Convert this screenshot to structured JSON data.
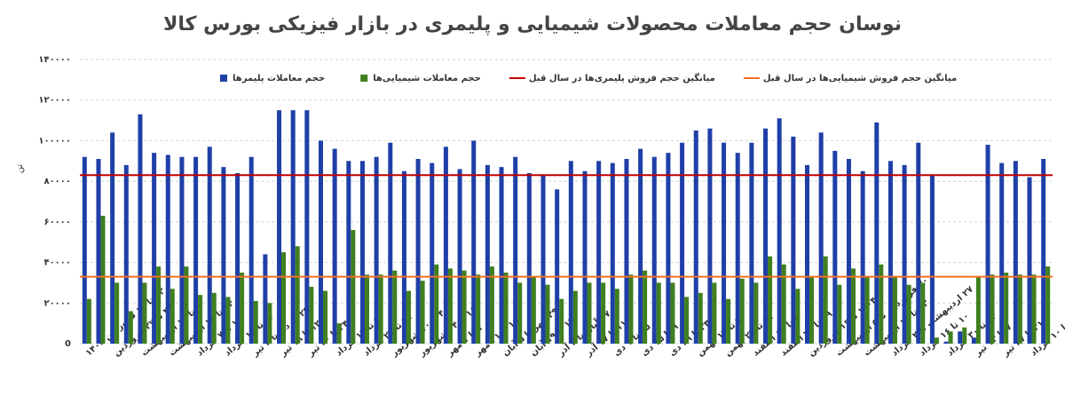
{
  "chart_data": {
    "type": "bar",
    "title": "نوسان حجم معاملات محصولات شیمیایی و پلیمری در بازار فیزیکی بورس کالا",
    "y_label": "تن",
    "categories": [
      "۱۳ تا ۱۵ فروردین ۱۴۰۳",
      null,
      "۲۷ تا ۲۷ فروردین",
      null,
      "۱ تا ۱۰ اردیبهشت",
      null,
      "۱۴ تا ۱۸ اردیبهشت",
      null,
      "۱ تا ۷ خرداد",
      null,
      "۱۳ تا ۱۵ خرداد",
      null,
      "۲۹ خرداد تا ۴ تیر",
      null,
      "۱۲ تا ۱۸ تیر",
      null,
      "۲۴ تا ۳۰ تیر",
      null,
      "۷ تا ۱۳ مرداد",
      null,
      "۲۱ تا ۲۷ مرداد",
      null,
      "۴ تا ۱۰ شهریور",
      null,
      "۱۸ تا ۲۴ شهریور",
      null,
      "۱ تا ۷ مهر",
      null,
      "۱۵ تا ۲۱ مهر",
      null,
      "۲۹ مهر تا ۵ آبان",
      null,
      "۱۳ تا ۱۹ آبان",
      null,
      "۲۷ آبان تا ۳ آذر",
      null,
      "۱۱ تا ۱۷ آذر",
      null,
      "۲۵ تا ۱ دی",
      null,
      "۹ تا ۱۵ دی",
      null,
      "۲۳ تا ۲۹ دی",
      null,
      "۷ تا ۱۳ بهمن",
      null,
      "۲۱ تا ۲۷ بهمن",
      null,
      "۵ تا ۱۱ اسفند",
      null,
      "۱۹ تا ۲۵ اسفند",
      null,
      "۱۴۰۴ تا ۱۶ فروردین",
      null,
      "۳۰ فروردین تا ۵ اردیبهشت",
      null,
      "۱۳ تا ۱۹ اردیبهشت",
      null,
      "۲۷ اردیبهشت تا ۲ خرداد",
      null,
      "۱۰ تا ۱۶ خرداد",
      null,
      "۲۴ تا ۳۰ خرداد",
      null,
      "۷ تا ۱۳ تیر",
      null,
      "۲۱ تا ۲۷ تیر",
      null,
      "۴ تا ۱۰ مرداد",
      null
    ],
    "series": [
      {
        "name": "حجم معاملات پلیمرها",
        "color": "#1f3fa8",
        "values": [
          92000,
          91000,
          104000,
          88000,
          113000,
          94000,
          93000,
          92000,
          92000,
          97000,
          87000,
          84000,
          92000,
          44000,
          115000,
          115000,
          115000,
          100000,
          96000,
          90000,
          90000,
          92000,
          99000,
          85000,
          91000,
          89000,
          97000,
          86000,
          100000,
          88000,
          87000,
          92000,
          84000,
          83000,
          76000,
          90000,
          85000,
          90000,
          89000,
          91000,
          96000,
          92000,
          94000,
          99000,
          105000,
          106000,
          99000,
          94000,
          99000,
          106000,
          111000,
          102000,
          88000,
          104000,
          95000,
          91000,
          85000,
          109000,
          90000,
          88000,
          99000,
          83000,
          1000,
          6000,
          3000,
          98000,
          89000,
          90000,
          82000,
          91000
        ]
      },
      {
        "name": "حجم معاملات شیمیایی‌ها",
        "color": "#3f7f1f",
        "values": [
          22000,
          63000,
          30000,
          16000,
          30000,
          38000,
          27000,
          38000,
          24000,
          25000,
          23000,
          35000,
          21000,
          20000,
          45000,
          48000,
          28000,
          26000,
          10000,
          56000,
          34000,
          34000,
          36000,
          26000,
          31000,
          39000,
          37000,
          36000,
          34000,
          38000,
          35000,
          30000,
          33000,
          29000,
          22000,
          26000,
          30000,
          30000,
          27000,
          34000,
          36000,
          30000,
          30000,
          23000,
          25000,
          30000,
          22000,
          32000,
          30000,
          43000,
          39000,
          27000,
          33000,
          43000,
          29000,
          37000,
          33000,
          39000,
          33000,
          29000,
          30000,
          3000,
          6000,
          8000,
          33000,
          34000,
          35000,
          34000,
          34000,
          38000
        ]
      }
    ],
    "reference_lines": [
      {
        "name": "میانگین حجم فروش پلیمری‌ها در سال قبل",
        "color": "#c00000",
        "value": 83000
      },
      {
        "name": "میانگین حجم فروش شیمیایی‌ها در سال قبل",
        "color": "#f07020",
        "value": 33000
      }
    ],
    "ylim": [
      0,
      140000
    ],
    "yticks": [
      0,
      {
        "value": 20000,
        "label": "۲۰۰۰۰"
      },
      {
        "value": 40000,
        "label": "۴۰۰۰۰"
      },
      {
        "value": 60000,
        "label": "۶۰۰۰۰"
      },
      {
        "value": 80000,
        "label": "۸۰۰۰۰"
      },
      {
        "value": 100000,
        "label": "۱۰۰۰۰۰"
      },
      {
        "value": 120000,
        "label": "۱۲۰۰۰۰"
      },
      {
        "value": 140000,
        "label": "۱۴۰۰۰۰"
      }
    ],
    "grid": true
  }
}
